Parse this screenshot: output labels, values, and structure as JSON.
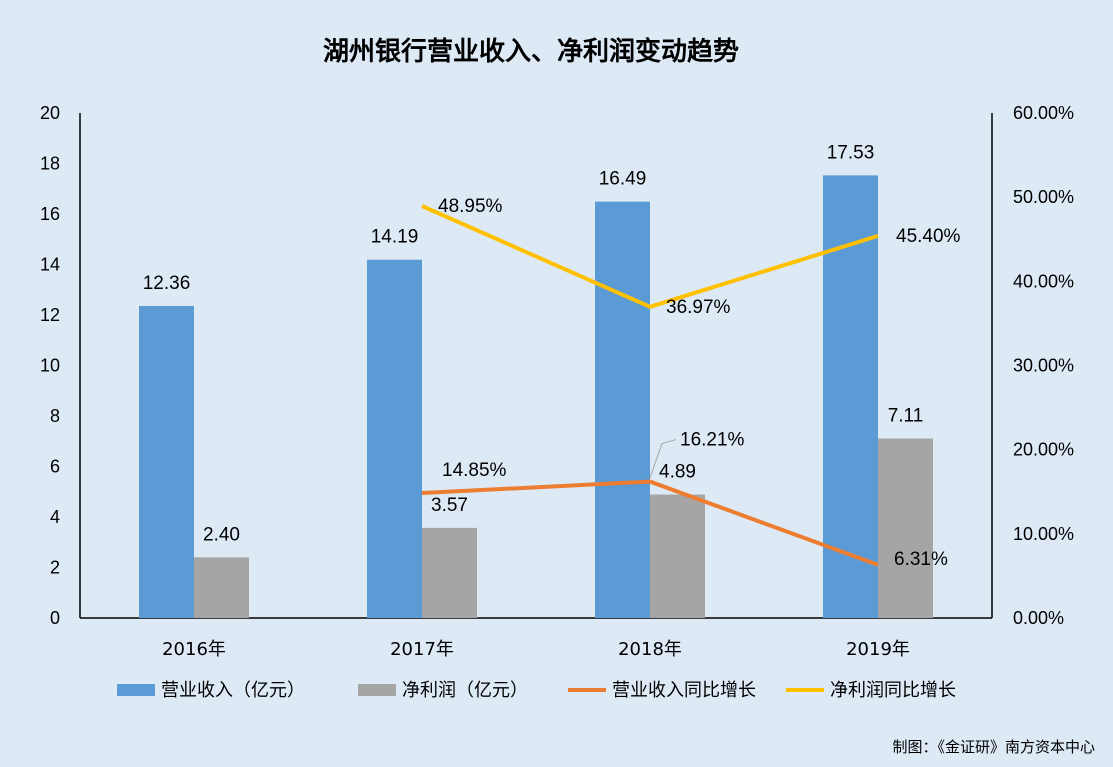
{
  "chart_data": {
    "title": "湖州银行营业收入、净利润变动趋势",
    "type": "bar+line",
    "categories": [
      "2016年",
      "2017年",
      "2018年",
      "2019年"
    ],
    "left_axis": {
      "min": 0,
      "max": 20,
      "step": 2,
      "ticks": [
        "0",
        "2",
        "4",
        "6",
        "8",
        "10",
        "12",
        "14",
        "16",
        "18",
        "20"
      ]
    },
    "right_axis": {
      "min": 0,
      "max": 60,
      "step": 10,
      "ticks": [
        "0.00%",
        "10.00%",
        "20.00%",
        "30.00%",
        "40.00%",
        "50.00%",
        "60.00%"
      ]
    },
    "series": [
      {
        "name": "营业收入（亿元）",
        "kind": "bar",
        "axis": "left",
        "color": "#5b9bd5",
        "values": [
          12.36,
          14.19,
          16.49,
          17.53
        ],
        "labels": [
          "12.36",
          "14.19",
          "16.49",
          "17.53"
        ]
      },
      {
        "name": "净利润（亿元）",
        "kind": "bar",
        "axis": "left",
        "color": "#a5a5a5",
        "values": [
          2.4,
          3.57,
          4.89,
          7.11
        ],
        "labels": [
          "2.40",
          "3.57",
          "4.89",
          "7.11"
        ]
      },
      {
        "name": "营业收入同比增长",
        "kind": "line",
        "axis": "right",
        "color": "#ed7d31",
        "values": [
          null,
          14.85,
          16.21,
          6.31
        ],
        "labels": [
          null,
          "14.85%",
          "16.21%",
          "6.31%"
        ]
      },
      {
        "name": "净利润同比增长",
        "kind": "line",
        "axis": "right",
        "color": "#ffc000",
        "values": [
          null,
          48.95,
          36.97,
          45.4
        ],
        "labels": [
          null,
          "48.95%",
          "36.97%",
          "45.40%"
        ]
      }
    ],
    "legend_position": "bottom",
    "grid": false
  },
  "source": "制图：《金证研》南方资本中心"
}
